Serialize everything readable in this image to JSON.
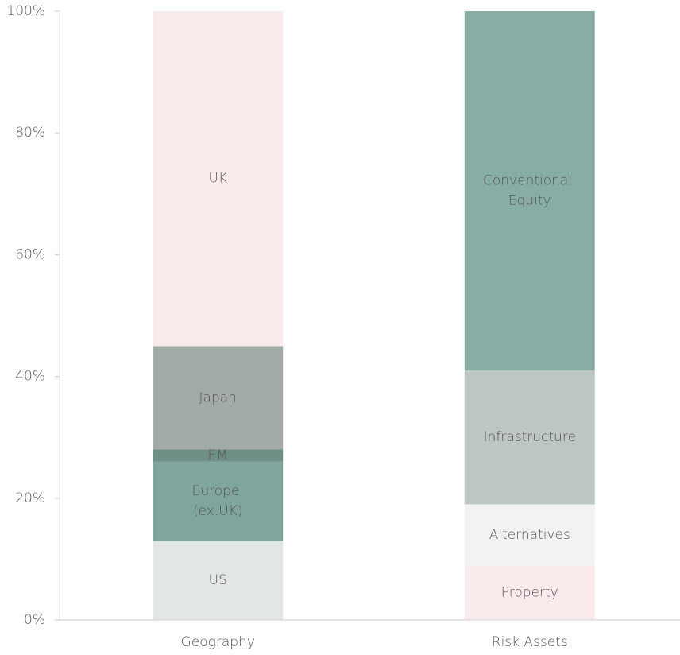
{
  "chart_data": {
    "type": "stacked-bar",
    "categories": [
      "Geography",
      "Risk Assets"
    ],
    "series": [
      {
        "name": "US",
        "color": "#e2e7e3",
        "values": [
          13,
          null
        ]
      },
      {
        "name": "Europe (ex.UK)",
        "color": "#7fa59c",
        "values": [
          13,
          null
        ]
      },
      {
        "name": "EM",
        "color": "#6e8f86",
        "values": [
          2,
          null
        ]
      },
      {
        "name": "Japan",
        "color": "#a3aba6",
        "values": [
          17,
          null
        ]
      },
      {
        "name": "UK",
        "color": "#f9ebeb",
        "values": [
          55,
          null
        ]
      },
      {
        "name": "Property",
        "color": "#f9ebeb",
        "values": [
          null,
          9
        ]
      },
      {
        "name": "Alternatives",
        "color": "#f1f2f1",
        "values": [
          null,
          10
        ]
      },
      {
        "name": "Infrastructure",
        "color": "#bec6c1",
        "values": [
          null,
          22
        ]
      },
      {
        "name": "Conventional Equity",
        "color": "#88ada5",
        "values": [
          null,
          59
        ]
      }
    ],
    "ylim": [
      0,
      100
    ],
    "yticks": [
      {
        "value": 0,
        "label": "0%"
      },
      {
        "value": 20,
        "label": "20%"
      },
      {
        "value": 40,
        "label": "40%"
      },
      {
        "value": 60,
        "label": "60%"
      },
      {
        "value": 80,
        "label": "80%"
      },
      {
        "value": 100,
        "label": "100%"
      }
    ]
  }
}
